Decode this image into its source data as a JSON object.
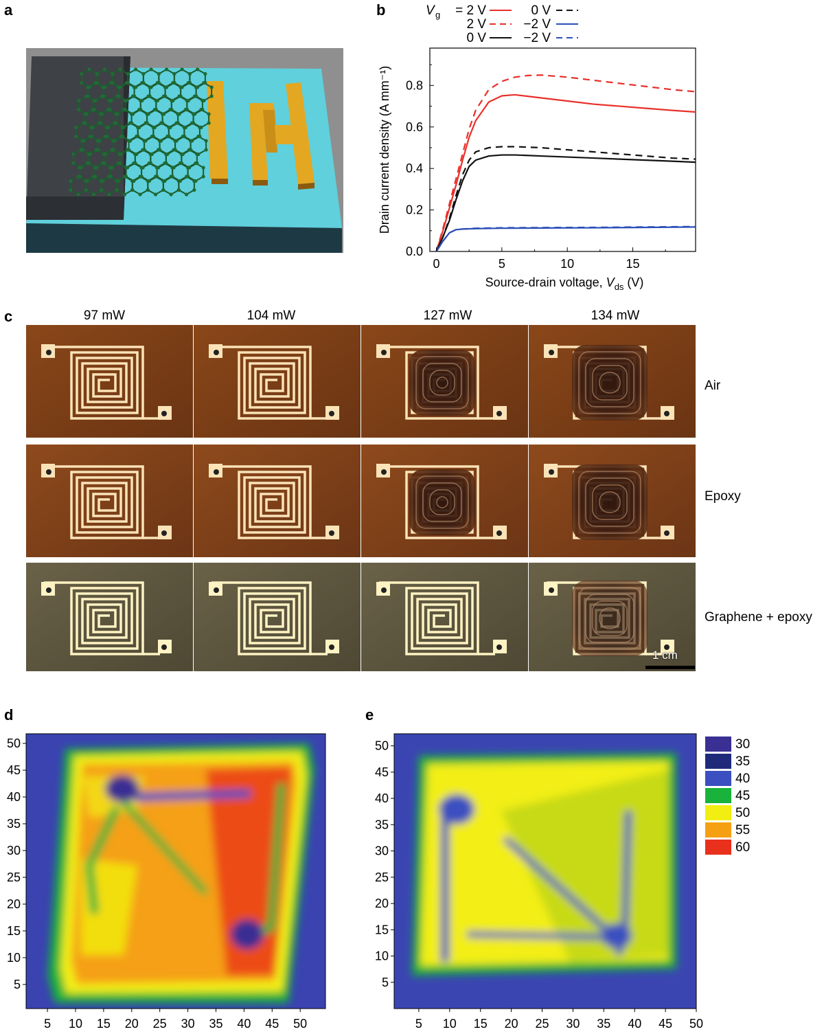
{
  "panels": {
    "a": "a",
    "b": "b",
    "c": "c",
    "d": "d",
    "e": "e"
  },
  "chart_b": {
    "type": "line",
    "ylabel": "Drain current density (A mm⁻¹)",
    "xlabel_prefix": "Source-drain voltage, ",
    "xlabel_var": "V",
    "xlabel_sub": "ds",
    "xlabel_suffix": " (V)",
    "xlim": [
      -0.5,
      19.8
    ],
    "ylim": [
      0,
      0.98
    ],
    "x_ticks": [
      "0",
      "5",
      "10",
      "15"
    ],
    "y_ticks": [
      "0.0",
      "0.2",
      "0.4",
      "0.6",
      "0.8"
    ],
    "legend": {
      "vg_symbol": "V",
      "vg_sub": "g",
      "rows": [
        {
          "left": "= 2 V",
          "right": "0 V"
        },
        {
          "left": "2 V",
          "right": "−2 V"
        },
        {
          "left": "0 V",
          "right": "−2 V"
        }
      ]
    },
    "series_colors": {
      "red": "#e8302a",
      "black": "#111111",
      "blue": "#2b4fb8"
    },
    "series": [
      {
        "color": "red",
        "dashed": false,
        "x": [
          0,
          0.5,
          1,
          1.5,
          2,
          2.5,
          3,
          4,
          5,
          6,
          8,
          10,
          12,
          14,
          16,
          18,
          19.8
        ],
        "y": [
          0,
          0.1,
          0.21,
          0.32,
          0.44,
          0.55,
          0.63,
          0.72,
          0.75,
          0.755,
          0.74,
          0.725,
          0.71,
          0.7,
          0.69,
          0.68,
          0.672
        ]
      },
      {
        "color": "red",
        "dashed": true,
        "x": [
          0,
          0.5,
          1,
          1.5,
          2,
          2.5,
          3,
          4,
          5,
          6,
          7,
          8,
          10,
          12,
          14,
          16,
          18,
          19.8
        ],
        "y": [
          0,
          0.11,
          0.23,
          0.35,
          0.47,
          0.59,
          0.68,
          0.78,
          0.82,
          0.84,
          0.848,
          0.85,
          0.84,
          0.825,
          0.81,
          0.795,
          0.78,
          0.77
        ]
      },
      {
        "color": "black",
        "dashed": false,
        "x": [
          0,
          0.5,
          1,
          1.5,
          2,
          2.5,
          3,
          4,
          5,
          6,
          8,
          10,
          12,
          14,
          16,
          18,
          19.8
        ],
        "y": [
          0,
          0.07,
          0.15,
          0.25,
          0.34,
          0.41,
          0.44,
          0.46,
          0.465,
          0.465,
          0.46,
          0.455,
          0.45,
          0.445,
          0.44,
          0.435,
          0.43
        ]
      },
      {
        "color": "black",
        "dashed": true,
        "x": [
          0,
          0.5,
          1,
          1.5,
          2,
          2.5,
          3,
          4,
          5,
          6,
          8,
          10,
          12,
          14,
          16,
          18,
          19.8
        ],
        "y": [
          0,
          0.07,
          0.16,
          0.27,
          0.37,
          0.44,
          0.48,
          0.5,
          0.505,
          0.505,
          0.5,
          0.49,
          0.48,
          0.47,
          0.46,
          0.45,
          0.445
        ]
      },
      {
        "color": "blue",
        "dashed": false,
        "x": [
          0,
          0.5,
          1,
          1.5,
          2,
          3,
          5,
          8,
          12,
          16,
          19.8
        ],
        "y": [
          0,
          0.05,
          0.09,
          0.105,
          0.108,
          0.11,
          0.112,
          0.113,
          0.114,
          0.116,
          0.118
        ]
      },
      {
        "color": "blue",
        "dashed": true,
        "x": [
          0,
          0.5,
          1,
          1.5,
          2,
          3,
          5,
          8,
          12,
          16,
          19.8
        ],
        "y": [
          0,
          0.05,
          0.09,
          0.105,
          0.108,
          0.112,
          0.114,
          0.115,
          0.116,
          0.118,
          0.12
        ]
      }
    ]
  },
  "panel_c": {
    "columns": [
      "97 mW",
      "104 mW",
      "127 mW",
      "134 mW"
    ],
    "rows": [
      "Air",
      "Epoxy",
      "Graphene + epoxy"
    ],
    "scale_bar": "1 cm"
  },
  "heatmap_d": {
    "x_ticks": [
      "5",
      "10",
      "15",
      "20",
      "25",
      "30",
      "35",
      "40",
      "45",
      "50"
    ],
    "y_ticks": [
      "5",
      "10",
      "15",
      "20",
      "25",
      "30",
      "35",
      "40",
      "45",
      "50"
    ]
  },
  "heatmap_e": {
    "x_ticks": [
      "5",
      "10",
      "15",
      "20",
      "25",
      "30",
      "35",
      "40",
      "45",
      "50"
    ],
    "y_ticks": [
      "5",
      "10",
      "15",
      "20",
      "25",
      "30",
      "35",
      "40",
      "45",
      "50"
    ]
  },
  "colorbar": {
    "entries": [
      {
        "label": "30",
        "color": "#3a2f93"
      },
      {
        "label": "35",
        "color": "#202a7a"
      },
      {
        "label": "40",
        "color": "#3b4fc0"
      },
      {
        "label": "45",
        "color": "#19b23a"
      },
      {
        "label": "50",
        "color": "#f2ee12"
      },
      {
        "label": "55",
        "color": "#f5a013"
      },
      {
        "label": "60",
        "color": "#e8301c"
      }
    ]
  }
}
